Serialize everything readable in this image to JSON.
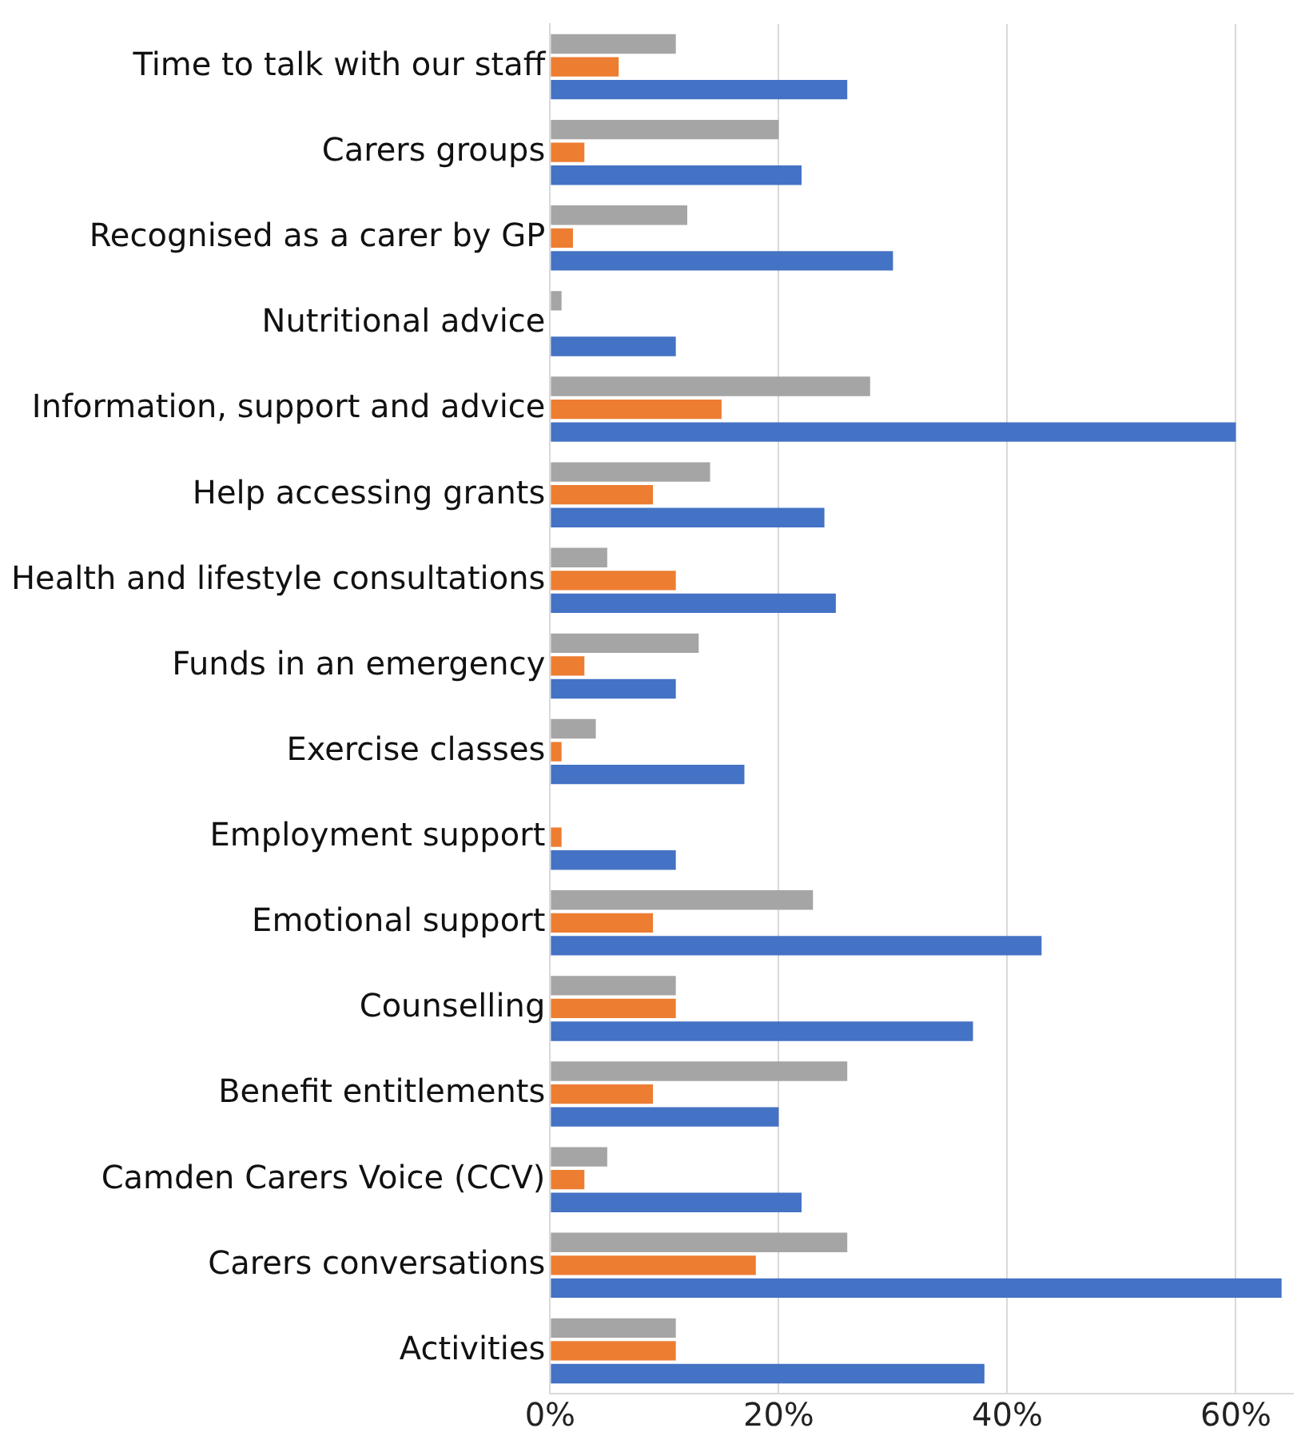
{
  "chart_data": {
    "type": "bar",
    "orientation": "horizontal",
    "categories": [
      "Time to talk with our staff",
      "Carers groups",
      "Recognised as a carer by GP",
      "Nutritional advice",
      "Information, support and advice",
      "Help accessing grants",
      "Health and lifestyle consultations",
      "Funds in an emergency",
      "Exercise classes",
      "Employment support",
      "Emotional support",
      "Counselling",
      "Benefit entitlements",
      "Camden Carers Voice (CCV)",
      "Carers conversations",
      "Activities"
    ],
    "series": [
      {
        "color": "#a5a5a5",
        "values": [
          11,
          20,
          12,
          1,
          28,
          14,
          5,
          13,
          4,
          0,
          23,
          11,
          26,
          5,
          26,
          11
        ]
      },
      {
        "color": "#ed7d31",
        "values": [
          6,
          3,
          2,
          0,
          15,
          9,
          11,
          3,
          1,
          1,
          9,
          11,
          9,
          3,
          18,
          11
        ]
      },
      {
        "color": "#4472c4",
        "values": [
          26,
          22,
          30,
          11,
          60,
          24,
          25,
          11,
          17,
          11,
          43,
          37,
          20,
          22,
          64,
          38
        ]
      }
    ],
    "xlim": [
      0,
      65
    ],
    "xticks": [
      {
        "value": 0,
        "label": "0%"
      },
      {
        "value": 20,
        "label": "20%"
      },
      {
        "value": 40,
        "label": "40%"
      },
      {
        "value": 60,
        "label": "60%"
      }
    ],
    "grid": "x",
    "legend": false
  }
}
